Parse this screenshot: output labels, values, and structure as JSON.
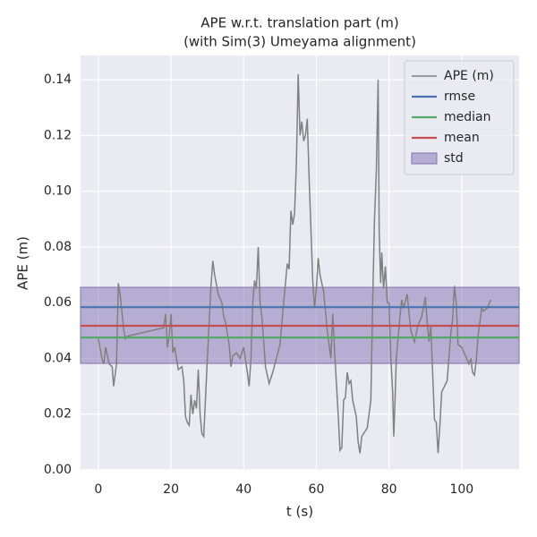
{
  "chart_data": {
    "type": "line",
    "title": "APE w.r.t. translation part (m)",
    "subtitle": "(with Sim(3) Umeyama alignment)",
    "x_label": "t (s)",
    "y_label": "APE (m)",
    "xlim": [
      -4.9,
      115.8
    ],
    "ylim": [
      0,
      0.1487
    ],
    "xticks": [
      0,
      20,
      40,
      60,
      80,
      100
    ],
    "yticks": [
      {
        "value": 0,
        "label": "0.00"
      },
      {
        "value": 0.02,
        "label": "0.02"
      },
      {
        "value": 0.04,
        "label": "0.04"
      },
      {
        "value": 0.06,
        "label": "0.06"
      },
      {
        "value": 0.08,
        "label": "0.08"
      },
      {
        "value": 0.1,
        "label": "0.10"
      },
      {
        "value": 0.12,
        "label": "0.12"
      },
      {
        "value": 0.14,
        "label": "0.14"
      }
    ],
    "grid": true,
    "legend": "upper right",
    "series": [
      {
        "name": "APE (m)",
        "color": "#808080",
        "x": [
          0,
          1,
          1.5,
          2,
          3,
          3.8,
          4.2,
          5,
          5.5,
          6,
          7,
          7.5,
          8,
          18,
          18.5,
          19,
          19.5,
          20,
          20.5,
          21,
          22,
          23,
          23.5,
          24,
          24.5,
          25,
          25.5,
          26,
          26.5,
          27,
          27.5,
          28,
          28.5,
          29,
          30,
          31,
          31.5,
          32,
          33,
          34,
          34.5,
          35,
          36,
          36.5,
          37,
          38,
          39,
          40,
          41,
          41.5,
          42,
          42.5,
          43,
          43.5,
          44,
          44.5,
          45,
          46,
          47,
          48,
          50,
          51,
          52,
          52.5,
          53,
          53.5,
          54,
          54.5,
          55,
          55.5,
          56,
          56.5,
          57,
          57.5,
          58,
          59,
          59.5,
          60,
          60.5,
          61,
          62,
          63,
          64,
          64.5,
          65,
          66,
          66.5,
          67,
          67.5,
          68,
          68.5,
          69,
          69.5,
          70,
          71,
          71.5,
          72,
          72.5,
          73,
          74,
          75,
          75.5,
          76,
          76.5,
          77,
          77.3,
          77.7,
          78,
          78.5,
          79,
          79.5,
          80,
          80.5,
          81,
          81.3,
          81.7,
          82,
          83,
          83.5,
          84,
          85,
          86,
          87,
          88,
          89,
          90,
          90.5,
          91,
          91.5,
          92,
          92.5,
          93,
          93.5,
          94,
          94.5,
          96,
          97,
          97.5,
          98,
          98.5,
          99,
          100,
          102,
          102.5,
          103,
          103.5,
          104,
          104.5,
          105,
          105.5,
          106,
          107,
          108
        ],
        "values": [
          0.047,
          0.04,
          0.038,
          0.044,
          0.038,
          0.037,
          0.03,
          0.038,
          0.067,
          0.063,
          0.05,
          0.047,
          0.048,
          0.051,
          0.056,
          0.044,
          0.048,
          0.056,
          0.042,
          0.044,
          0.036,
          0.037,
          0.032,
          0.019,
          0.017,
          0.016,
          0.027,
          0.02,
          0.025,
          0.022,
          0.036,
          0.02,
          0.013,
          0.012,
          0.04,
          0.066,
          0.075,
          0.07,
          0.063,
          0.06,
          0.055,
          0.053,
          0.045,
          0.037,
          0.041,
          0.042,
          0.04,
          0.044,
          0.035,
          0.03,
          0.04,
          0.06,
          0.068,
          0.065,
          0.08,
          0.06,
          0.055,
          0.037,
          0.031,
          0.035,
          0.045,
          0.06,
          0.074,
          0.072,
          0.093,
          0.088,
          0.092,
          0.11,
          0.142,
          0.12,
          0.125,
          0.118,
          0.12,
          0.126,
          0.105,
          0.068,
          0.058,
          0.065,
          0.076,
          0.07,
          0.064,
          0.05,
          0.04,
          0.056,
          0.043,
          0.02,
          0.007,
          0.008,
          0.025,
          0.026,
          0.035,
          0.031,
          0.032,
          0.025,
          0.019,
          0.01,
          0.006,
          0.012,
          0.013,
          0.015,
          0.025,
          0.06,
          0.09,
          0.107,
          0.14,
          0.085,
          0.067,
          0.078,
          0.065,
          0.073,
          0.06,
          0.06,
          0.04,
          0.028,
          0.012,
          0.027,
          0.04,
          0.055,
          0.061,
          0.058,
          0.063,
          0.05,
          0.046,
          0.052,
          0.055,
          0.062,
          0.053,
          0.046,
          0.052,
          0.035,
          0.018,
          0.017,
          0.006,
          0.016,
          0.028,
          0.032,
          0.049,
          0.054,
          0.066,
          0.06,
          0.045,
          0.044,
          0.038,
          0.04,
          0.035,
          0.034,
          0.039,
          0.048,
          0.053,
          0.058,
          0.057,
          0.058,
          0.061
        ]
      }
    ],
    "hlines": [
      {
        "name": "rmse",
        "color": "#4c72b0",
        "value": 0.0584
      },
      {
        "name": "median",
        "color": "#55a868",
        "value": 0.0475
      },
      {
        "name": "mean",
        "color": "#c44e52",
        "value": 0.0517
      }
    ],
    "bands": [
      {
        "name": "std",
        "color": "#8172b2",
        "range": [
          0.0382,
          0.0655
        ]
      }
    ]
  }
}
